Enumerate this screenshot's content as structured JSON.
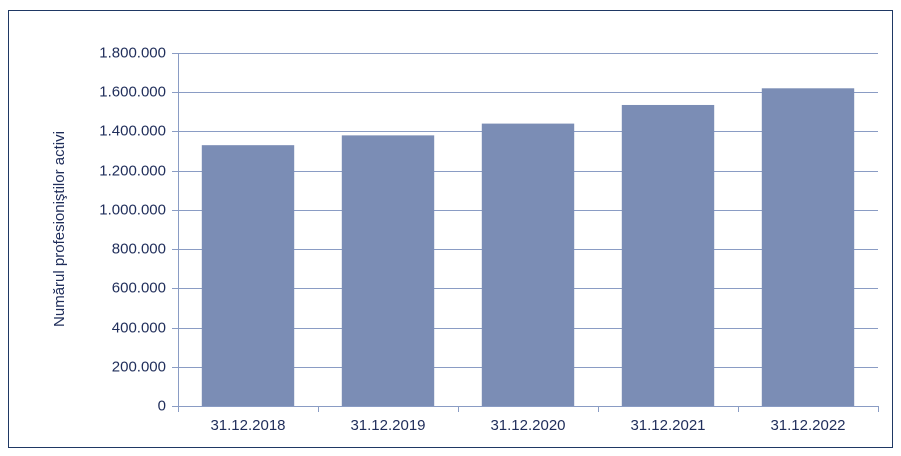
{
  "chart_data": {
    "type": "bar",
    "y_label": "Numărul profesioniştilor activi",
    "categories": [
      "31.12.2018",
      "31.12.2019",
      "31.12.2020",
      "31.12.2021",
      "31.12.2022"
    ],
    "values": [
      1330000,
      1380000,
      1440000,
      1535000,
      1620000
    ],
    "color": "#7b8db5",
    "ylim": [
      0,
      1800000
    ],
    "yticks": [
      0,
      {
        "value": 200000,
        "label": "200.000"
      },
      {
        "value": 400000,
        "label": "400.000"
      },
      {
        "value": 600000,
        "label": "600.000"
      },
      {
        "value": 800000,
        "label": "800.000"
      },
      {
        "value": 1000000,
        "label": "1.000.000"
      },
      {
        "value": 1200000,
        "label": "1.200.000"
      },
      {
        "value": 1400000,
        "label": "1.400.000"
      },
      {
        "value": 1600000,
        "label": "1.600.000"
      },
      {
        "value": 1800000,
        "label": "1.800.000"
      }
    ],
    "grid": true
  }
}
